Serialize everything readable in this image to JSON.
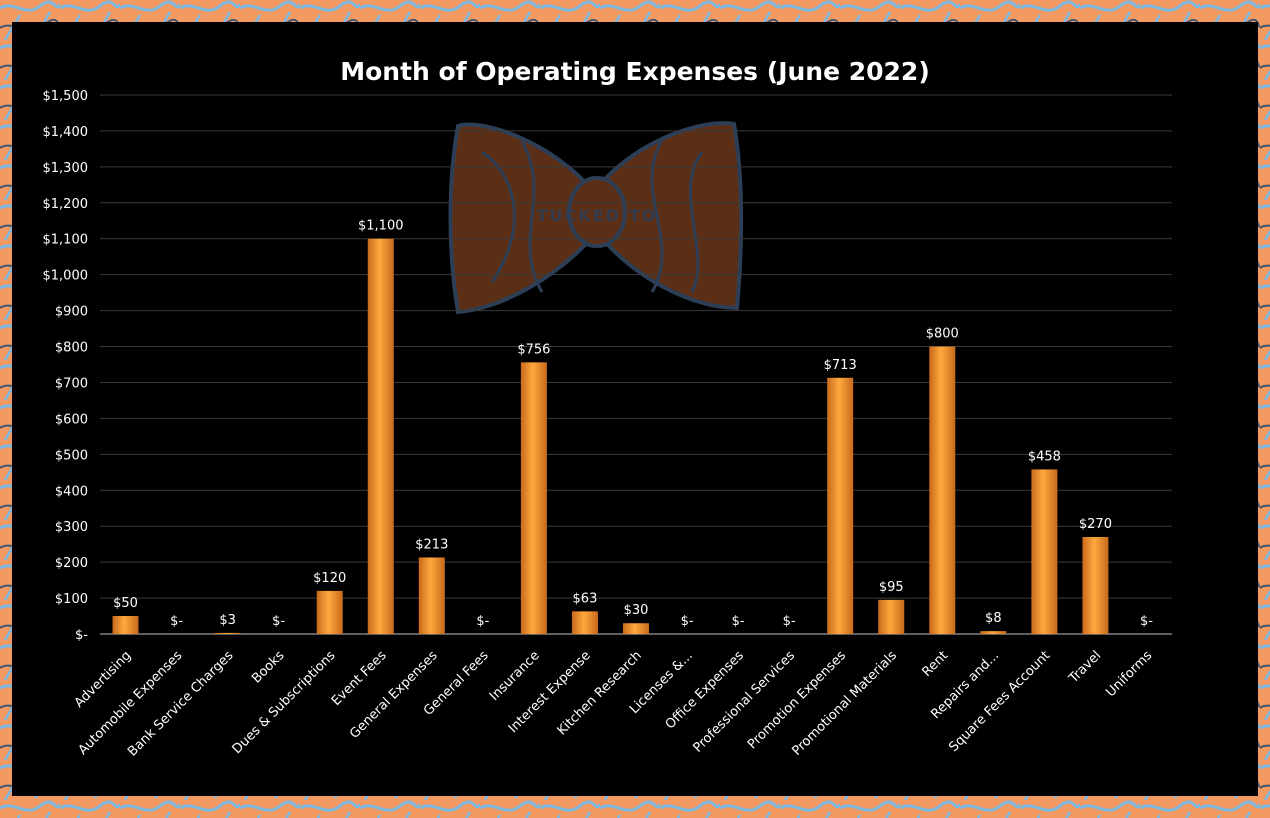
{
  "colors": {
    "background": "#000000",
    "bar": "#f39a34",
    "frame_orange": "#f39a62",
    "frame_blue": "#7ab8e2",
    "gridline": "#3a3a3a",
    "text": "#ffffff"
  },
  "watermark": {
    "icon": "bow-tie-logo-icon",
    "text": "TUCKEDITO"
  },
  "chart_data": {
    "type": "bar",
    "title": "Month of Operating Expenses (June 2022)",
    "xlabel": "",
    "ylabel": "",
    "ylim": [
      0,
      1500
    ],
    "grid": true,
    "legend": "none",
    "ytick_labels": [
      "$-",
      "$100",
      "$200",
      "$300",
      "$400",
      "$500",
      "$600",
      "$700",
      "$800",
      "$900",
      "$1,000",
      "$1,100",
      "$1,200",
      "$1,300",
      "$1,400",
      "$1,500"
    ],
    "categories": [
      "Advertising",
      "Automobile Expenses",
      "Bank Service Charges",
      "Books",
      "Dues & Subscriptions",
      "Event Fees",
      "General Expenses",
      "General Fees",
      "Insurance",
      "Interest Expense",
      "Kitchen Research",
      "Licenses &...",
      "Office Expenses",
      "Professional Services",
      "Promotion Expenses",
      "Promotional Materials",
      "Rent",
      "Repairs and...",
      "Square Fees Account",
      "Travel",
      "Uniforms"
    ],
    "values": [
      50,
      0,
      3,
      0,
      120,
      1100,
      213,
      0,
      756,
      63,
      30,
      0,
      0,
      0,
      713,
      95,
      800,
      8,
      458,
      270,
      0
    ],
    "data_labels": [
      "$50",
      "$-",
      "$3",
      "$-",
      "$120",
      "$1,100",
      "$213",
      "$-",
      "$756",
      "$63",
      "$30",
      "$-",
      "$-",
      "$-",
      "$713",
      "$95",
      "$800",
      "$8",
      "$458",
      "$270",
      "$-"
    ]
  }
}
